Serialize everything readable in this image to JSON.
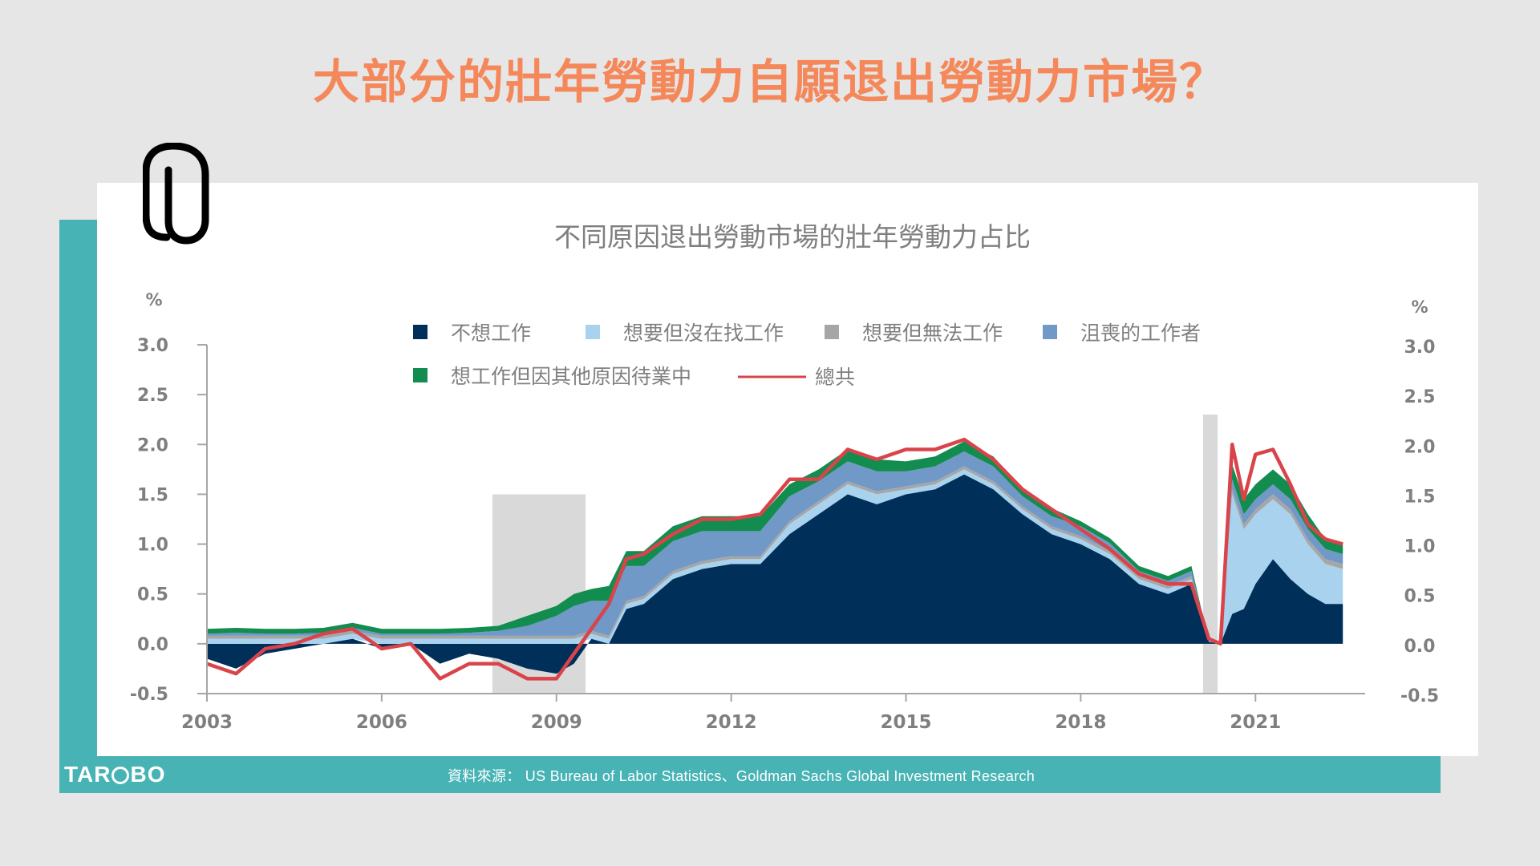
{
  "page": {
    "title": "大部分的壯年勞動力自願退出勞動力市場？",
    "title_color": "#f4885a",
    "accent_color": "#48b3b5",
    "source": "資料來源： US Bureau of Labor Statistics、Goldman Sachs Global Investment Research",
    "logo": {
      "prefix": "TAR",
      "suffix": "BO"
    }
  },
  "chart_data": {
    "type": "area",
    "stacked": true,
    "title": "不同原因退出勞動市場的壯年勞動力占比",
    "ylabel_left": "%",
    "ylabel_right": "%",
    "ylim": [
      -0.5,
      3.0
    ],
    "yticks": [
      3.0,
      2.5,
      2.0,
      1.5,
      1.0,
      0.5,
      0.0,
      -0.5
    ],
    "ytick_labels": [
      "3.0",
      "2.5",
      "2.0",
      "1.5",
      "1.0",
      "0.5",
      "0.0",
      "-0.5"
    ],
    "xlim": [
      2003.0,
      2022.8
    ],
    "xticks": [
      2003,
      2006,
      2009,
      2012,
      2015,
      2018,
      2021
    ],
    "xtick_labels": [
      "2003",
      "2006",
      "2009",
      "2012",
      "2015",
      "2018",
      "2021"
    ],
    "recessions": [
      [
        2007.9,
        2009.5
      ],
      [
        2020.1,
        2020.35
      ]
    ],
    "x": [
      2003.0,
      2003.5,
      2004.0,
      2004.5,
      2005.0,
      2005.5,
      2006.0,
      2006.5,
      2007.0,
      2007.5,
      2008.0,
      2008.5,
      2009.0,
      2009.3,
      2009.6,
      2009.9,
      2010.2,
      2010.5,
      2011.0,
      2011.5,
      2012.0,
      2012.5,
      2013.0,
      2013.5,
      2014.0,
      2014.5,
      2015.0,
      2015.5,
      2016.0,
      2016.5,
      2017.0,
      2017.5,
      2018.0,
      2018.5,
      2019.0,
      2019.5,
      2019.9,
      2020.2,
      2020.4,
      2020.6,
      2020.8,
      2021.0,
      2021.3,
      2021.6,
      2021.9,
      2022.2,
      2022.5
    ],
    "series": [
      {
        "name": "不想工作",
        "color": "#00305a",
        "values": [
          -0.15,
          -0.25,
          -0.1,
          -0.05,
          0.0,
          0.05,
          -0.05,
          0.0,
          -0.2,
          -0.1,
          -0.15,
          -0.25,
          -0.3,
          -0.2,
          0.05,
          0.0,
          0.35,
          0.4,
          0.65,
          0.75,
          0.8,
          0.8,
          1.1,
          1.3,
          1.5,
          1.4,
          1.5,
          1.55,
          1.7,
          1.55,
          1.3,
          1.1,
          1.0,
          0.85,
          0.6,
          0.5,
          0.6,
          0.02,
          0.0,
          0.3,
          0.35,
          0.6,
          0.85,
          0.65,
          0.5,
          0.4,
          0.4
        ]
      },
      {
        "name": "想要但沒在找工作",
        "color": "#a9d2ee",
        "values": [
          0.05,
          0.05,
          0.05,
          0.05,
          0.05,
          0.05,
          0.05,
          0.05,
          0.05,
          0.05,
          0.05,
          0.05,
          0.05,
          0.05,
          0.05,
          0.05,
          0.05,
          0.05,
          0.05,
          0.05,
          0.05,
          0.05,
          0.1,
          0.1,
          0.1,
          0.1,
          0.05,
          0.05,
          0.05,
          0.05,
          0.05,
          0.05,
          0.05,
          0.05,
          0.05,
          0.05,
          0.05,
          0.0,
          0.0,
          1.2,
          0.8,
          0.7,
          0.6,
          0.65,
          0.5,
          0.4,
          0.35
        ]
      },
      {
        "name": "想要但無法工作",
        "color": "#a6a6a6",
        "values": [
          0.03,
          0.03,
          0.03,
          0.03,
          0.03,
          0.03,
          0.03,
          0.03,
          0.03,
          0.03,
          0.03,
          0.03,
          0.03,
          0.03,
          0.03,
          0.03,
          0.03,
          0.03,
          0.03,
          0.03,
          0.03,
          0.03,
          0.03,
          0.03,
          0.03,
          0.03,
          0.03,
          0.03,
          0.03,
          0.03,
          0.03,
          0.03,
          0.03,
          0.03,
          0.03,
          0.03,
          0.03,
          0.0,
          0.0,
          0.05,
          0.05,
          0.05,
          0.05,
          0.05,
          0.05,
          0.05,
          0.05
        ]
      },
      {
        "name": "沮喪的工作者",
        "color": "#7099c8",
        "values": [
          0.02,
          0.03,
          0.02,
          0.02,
          0.03,
          0.03,
          0.02,
          0.02,
          0.02,
          0.03,
          0.05,
          0.1,
          0.2,
          0.3,
          0.3,
          0.35,
          0.35,
          0.3,
          0.3,
          0.3,
          0.25,
          0.25,
          0.25,
          0.2,
          0.2,
          0.2,
          0.15,
          0.15,
          0.15,
          0.15,
          0.1,
          0.1,
          0.1,
          0.08,
          0.05,
          0.05,
          0.05,
          0.0,
          0.0,
          0.1,
          0.1,
          0.1,
          0.1,
          0.1,
          0.1,
          0.1,
          0.1
        ]
      },
      {
        "name": "想工作但因其他原因待業中",
        "color": "#138c4f",
        "values": [
          0.05,
          0.05,
          0.05,
          0.05,
          0.05,
          0.05,
          0.05,
          0.05,
          0.05,
          0.05,
          0.05,
          0.1,
          0.1,
          0.12,
          0.12,
          0.15,
          0.15,
          0.15,
          0.15,
          0.15,
          0.15,
          0.15,
          0.12,
          0.12,
          0.12,
          0.12,
          0.1,
          0.1,
          0.1,
          0.1,
          0.08,
          0.08,
          0.05,
          0.05,
          0.05,
          0.05,
          0.05,
          0.0,
          0.0,
          0.15,
          0.15,
          0.15,
          0.15,
          0.15,
          0.15,
          0.1,
          0.1
        ]
      }
    ],
    "total": {
      "name": "總共",
      "color": "#d9444a",
      "values": [
        -0.2,
        -0.3,
        -0.05,
        0.0,
        0.1,
        0.15,
        -0.05,
        0.0,
        -0.35,
        -0.2,
        -0.2,
        -0.35,
        -0.35,
        -0.1,
        0.15,
        0.4,
        0.85,
        0.9,
        1.1,
        1.25,
        1.25,
        1.3,
        1.65,
        1.65,
        1.95,
        1.85,
        1.95,
        1.95,
        2.05,
        1.85,
        1.55,
        1.35,
        1.15,
        0.95,
        0.7,
        0.6,
        0.6,
        0.05,
        0.0,
        2.0,
        1.45,
        1.9,
        1.95,
        1.6,
        1.2,
        1.05,
        1.0
      ]
    },
    "legend": {
      "placement": "top"
    }
  }
}
